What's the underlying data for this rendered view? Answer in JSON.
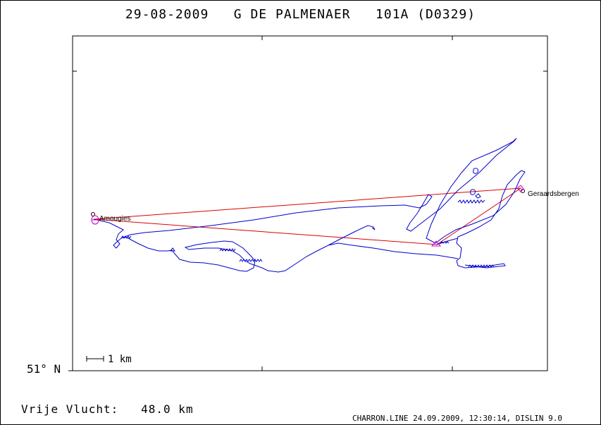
{
  "header": {
    "date": "29-08-2009",
    "name": "G DE PALMENAER",
    "ring": "101A (D0329)"
  },
  "map": {
    "latitude_label": "51° N",
    "scale_label": "1 km",
    "places": [
      {
        "name": "Amougies",
        "role": "start"
      },
      {
        "name": "Geraardsbergen",
        "role": "turnpoint"
      }
    ],
    "colors": {
      "track": "#0000cc",
      "reference_line": "#dd0000",
      "marker": "#cc00cc",
      "frame": "#000000"
    }
  },
  "footer": {
    "flight_label": "Vrije Vlucht:",
    "distance": "48.0 km",
    "credit": "CHARRON.LINE 24.09.2009, 12:30:14, DISLIN 9.0"
  }
}
